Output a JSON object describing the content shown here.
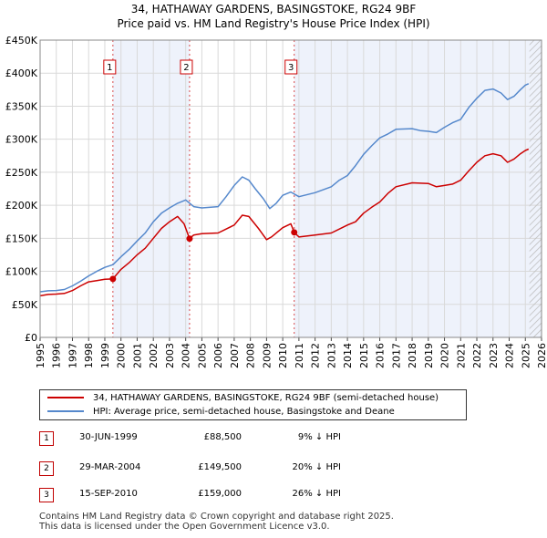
{
  "title_line1": "34, HATHAWAY GARDENS, BASINGSTOKE, RG24 9BF",
  "title_line2": "Price paid vs. HM Land Registry's House Price Index (HPI)",
  "chart_data": {
    "type": "line",
    "xlim": [
      1995.0,
      2026.0
    ],
    "ylim": [
      0,
      450000
    ],
    "y_ticks": [
      0,
      50000,
      100000,
      150000,
      200000,
      250000,
      300000,
      350000,
      400000,
      450000
    ],
    "y_tick_labels": [
      "£0",
      "£50K",
      "£100K",
      "£150K",
      "£200K",
      "£250K",
      "£300K",
      "£350K",
      "£400K",
      "£450K"
    ],
    "x_tick_labels": [
      "1995",
      "1996",
      "1997",
      "1998",
      "1999",
      "2000",
      "2001",
      "2002",
      "2003",
      "2004",
      "2005",
      "2006",
      "2007",
      "2008",
      "2009",
      "2010",
      "2011",
      "2012",
      "2013",
      "2014",
      "2015",
      "2016",
      "2017",
      "2018",
      "2019",
      "2020",
      "2021",
      "2022",
      "2023",
      "2024",
      "2025",
      "2026"
    ],
    "shaded_regions": [
      [
        1999.5,
        2004.24
      ],
      [
        2010.71,
        2026.0
      ]
    ],
    "future_hatch_from": 2025.25,
    "series": [
      {
        "name": "34, HATHAWAY GARDENS, BASINGSTOKE, RG24 9BF (semi-detached house)",
        "color": "#cc0000",
        "x": [
          1995.0,
          1995.5,
          1996.0,
          1996.5,
          1997.0,
          1997.5,
          1998.0,
          1998.5,
          1999.0,
          1999.5,
          2000.0,
          2000.5,
          2001.0,
          2001.5,
          2002.0,
          2002.5,
          2003.0,
          2003.5,
          2003.9,
          2004.24,
          2004.5,
          2005.0,
          2006.0,
          2007.0,
          2007.5,
          2007.9,
          2008.5,
          2009.0,
          2009.3,
          2010.0,
          2010.5,
          2010.71,
          2011.0,
          2012.0,
          2013.0,
          2014.0,
          2014.5,
          2015.0,
          2015.5,
          2016.0,
          2016.5,
          2017.0,
          2018.0,
          2019.0,
          2019.5,
          2020.0,
          2020.5,
          2021.0,
          2021.5,
          2022.0,
          2022.5,
          2023.0,
          2023.5,
          2023.9,
          2024.3,
          2024.7,
          2025.0,
          2025.2
        ],
        "y": [
          63000,
          65000,
          65500,
          66500,
          71000,
          78000,
          84000,
          86000,
          88000,
          88500,
          103000,
          113000,
          125000,
          135000,
          150000,
          165000,
          175000,
          183000,
          172000,
          149500,
          155000,
          157000,
          158000,
          170000,
          185000,
          183000,
          165000,
          148000,
          152000,
          166000,
          172000,
          159000,
          152000,
          155000,
          158000,
          170000,
          175000,
          188000,
          197000,
          205000,
          218000,
          228000,
          234000,
          233000,
          228000,
          230000,
          232000,
          238000,
          252000,
          265000,
          275000,
          278000,
          275000,
          265000,
          270000,
          278000,
          283000,
          285000
        ]
      },
      {
        "name": "HPI: Average price, semi-detached house, Basingstoke and Deane",
        "color": "#5588cc",
        "x": [
          1995.0,
          1995.5,
          1996.0,
          1996.5,
          1997.0,
          1997.5,
          1998.0,
          1998.5,
          1999.0,
          1999.5,
          2000.0,
          2000.5,
          2001.0,
          2001.5,
          2002.0,
          2002.5,
          2003.0,
          2003.5,
          2004.0,
          2004.5,
          2005.0,
          2006.0,
          2006.5,
          2007.0,
          2007.5,
          2007.9,
          2008.3,
          2008.8,
          2009.2,
          2009.6,
          2010.0,
          2010.5,
          2011.0,
          2012.0,
          2013.0,
          2013.5,
          2014.0,
          2014.5,
          2015.0,
          2015.5,
          2016.0,
          2016.5,
          2017.0,
          2018.0,
          2018.5,
          2019.0,
          2019.5,
          2020.0,
          2020.5,
          2021.0,
          2021.5,
          2022.0,
          2022.5,
          2023.0,
          2023.5,
          2023.9,
          2024.3,
          2024.7,
          2025.0,
          2025.2
        ],
        "y": [
          69000,
          70500,
          71000,
          72500,
          78000,
          85000,
          93000,
          100000,
          106000,
          110000,
          122000,
          133000,
          146000,
          158000,
          175000,
          188000,
          196000,
          203000,
          208000,
          198000,
          196000,
          198000,
          213000,
          230000,
          243000,
          238000,
          225000,
          210000,
          195000,
          203000,
          215000,
          220000,
          213000,
          219000,
          228000,
          238000,
          245000,
          260000,
          277000,
          290000,
          302000,
          308000,
          315000,
          316000,
          313000,
          312000,
          310000,
          318000,
          325000,
          330000,
          348000,
          362000,
          374000,
          376000,
          370000,
          360000,
          365000,
          375000,
          382000,
          384000
        ]
      }
    ],
    "sales": [
      {
        "label": "1",
        "x": 1999.5,
        "y": 88500
      },
      {
        "label": "2",
        "x": 2004.24,
        "y": 149500
      },
      {
        "label": "3",
        "x": 2010.71,
        "y": 159000
      }
    ]
  },
  "legend": {
    "items": [
      {
        "label": "34, HATHAWAY GARDENS, BASINGSTOKE, RG24 9BF (semi-detached house)",
        "color": "#cc0000"
      },
      {
        "label": "HPI: Average price, semi-detached house, Basingstoke and Deane",
        "color": "#5588cc"
      }
    ]
  },
  "transactions": [
    {
      "num": "1",
      "date": "30-JUN-1999",
      "price": "£88,500",
      "hpi": "9% ↓ HPI"
    },
    {
      "num": "2",
      "date": "29-MAR-2004",
      "price": "£149,500",
      "hpi": "20% ↓ HPI"
    },
    {
      "num": "3",
      "date": "15-SEP-2010",
      "price": "£159,000",
      "hpi": "26% ↓ HPI"
    }
  ],
  "footer": {
    "line1": "Contains HM Land Registry data © Crown copyright and database right 2025.",
    "line2": "This data is licensed under the Open Government Licence v3.0."
  }
}
